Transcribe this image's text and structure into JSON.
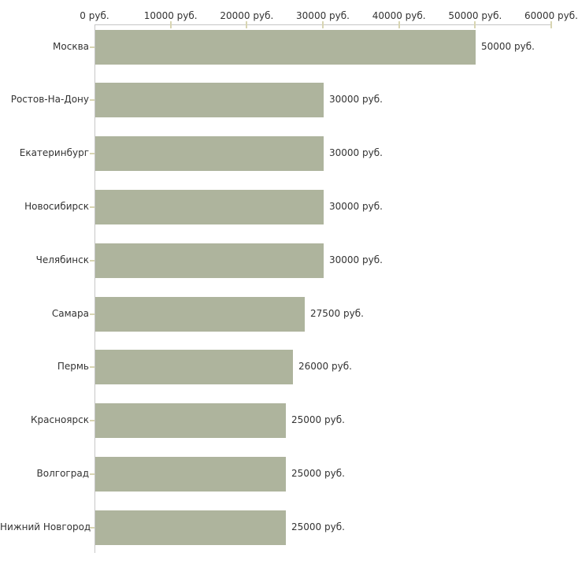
{
  "chart_data": {
    "type": "bar",
    "orientation": "horizontal",
    "title": "",
    "categories": [
      "Москва",
      "Ростов-На-Дону",
      "Екатеринбург",
      "Новосибирск",
      "Челябинск",
      "Самара",
      "Пермь",
      "Красноярск",
      "Волгоград",
      "Нижний Новгород"
    ],
    "values": [
      50000,
      30000,
      30000,
      30000,
      30000,
      27500,
      26000,
      25000,
      25000,
      25000
    ],
    "value_labels": [
      "50000 руб.",
      "30000 руб.",
      "30000 руб.",
      "30000 руб.",
      "30000 руб.",
      "27500 руб.",
      "26000 руб.",
      "25000 руб.",
      "25000 руб.",
      "25000 руб."
    ],
    "x_tick_values": [
      0,
      10000,
      20000,
      30000,
      40000,
      50000,
      60000
    ],
    "x_tick_labels": [
      "0 руб.",
      "10000 руб.",
      "20000 руб.",
      "30000 руб.",
      "40000 руб.",
      "50000 руб.",
      "60000 руб."
    ],
    "xlim": [
      0,
      60000
    ],
    "xlabel": "",
    "ylabel": "",
    "unit": "руб.",
    "axis_position": "top",
    "grid": false,
    "legend_position": "none",
    "colors": {
      "bar": "#aeb49d",
      "axis_line": "#c6c6c6",
      "tick_mark": "#d8d5b2",
      "text": "#333333",
      "background": "#ffffff"
    }
  }
}
